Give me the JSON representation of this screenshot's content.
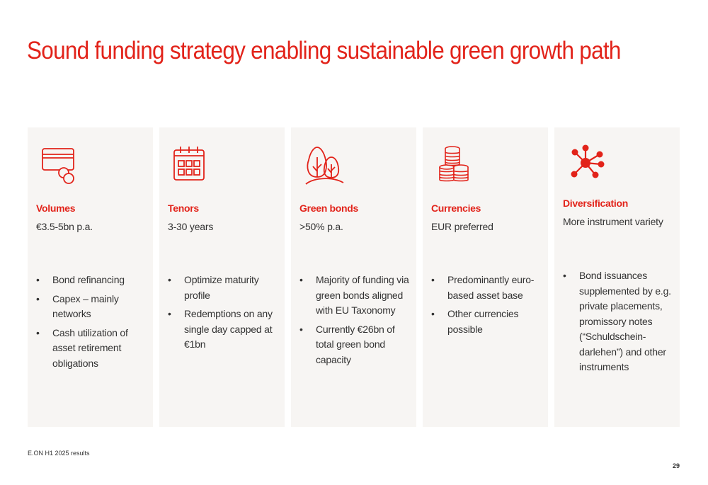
{
  "title": "Sound funding strategy enabling sustainable green growth path",
  "colors": {
    "accent": "#e2231a",
    "card_bg": "#f7f5f3",
    "text": "#333333"
  },
  "cards": [
    {
      "icon": "credit-card-coin-icon",
      "heading": "Volumes",
      "value": "€3.5-5bn p.a.",
      "bullets": [
        "Bond refinancing",
        "Capex – mainly networks",
        "Cash utilization of asset retirement obligations"
      ]
    },
    {
      "icon": "calendar-icon",
      "heading": "Tenors",
      "value": "3-30 years",
      "bullets": [
        "Optimize maturity profile",
        "Redemptions on any single day capped at €1bn"
      ]
    },
    {
      "icon": "trees-icon",
      "heading": "Green bonds",
      "value": ">50% p.a.",
      "bullets": [
        "Majority of funding via green bonds aligned with EU Taxonomy",
        "Currently €26bn of total green bond capacity"
      ]
    },
    {
      "icon": "coin-stacks-icon",
      "heading": "Currencies",
      "value": "EUR preferred",
      "bullets": [
        "Predominantly euro-based asset base",
        "Other currencies possible"
      ]
    },
    {
      "icon": "network-icon",
      "heading": "Diversification",
      "value": "More instrument variety",
      "bullets": [
        "Bond issuances supplemented by e.g. private placements, promissory notes (“Schuldschein-darlehen”) and other instruments"
      ]
    }
  ],
  "footer": "E.ON H1 2025 results",
  "page_number": "29"
}
